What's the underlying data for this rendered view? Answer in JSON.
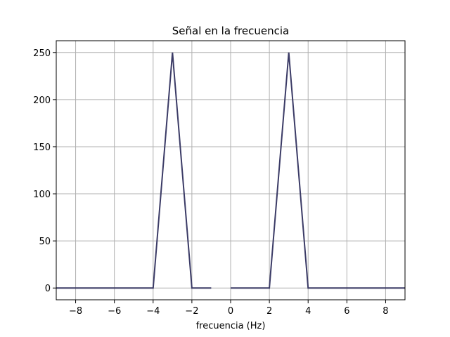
{
  "chart_data": {
    "type": "line",
    "title": "Señal en la frecuencia",
    "xlabel": "frecuencia (Hz)",
    "ylabel": "",
    "xlim": [
      -9,
      9
    ],
    "ylim": [
      -12.5,
      262.5
    ],
    "grid": true,
    "x_ticks": [
      -8,
      -6,
      -4,
      -2,
      0,
      2,
      4,
      6,
      8
    ],
    "x_tick_labels": [
      "−8",
      "−6",
      "−4",
      "−2",
      "0",
      "2",
      "4",
      "6",
      "8"
    ],
    "y_ticks": [
      0,
      50,
      100,
      150,
      200,
      250
    ],
    "y_tick_labels": [
      "0",
      "50",
      "100",
      "150",
      "200",
      "250"
    ],
    "series": [
      {
        "name": "",
        "color": "#3b3b66",
        "segments": [
          {
            "x": [
              -9,
              -8,
              -7,
              -6,
              -5,
              -4,
              -3,
              -2,
              -1
            ],
            "y": [
              0,
              0,
              0,
              0,
              0,
              0,
              250,
              0,
              0
            ]
          },
          {
            "x": [
              0,
              1,
              2,
              3,
              4,
              5,
              6,
              7,
              8,
              9
            ],
            "y": [
              0,
              0,
              0,
              250,
              0,
              0,
              0,
              0,
              0,
              0
            ]
          }
        ]
      }
    ]
  }
}
